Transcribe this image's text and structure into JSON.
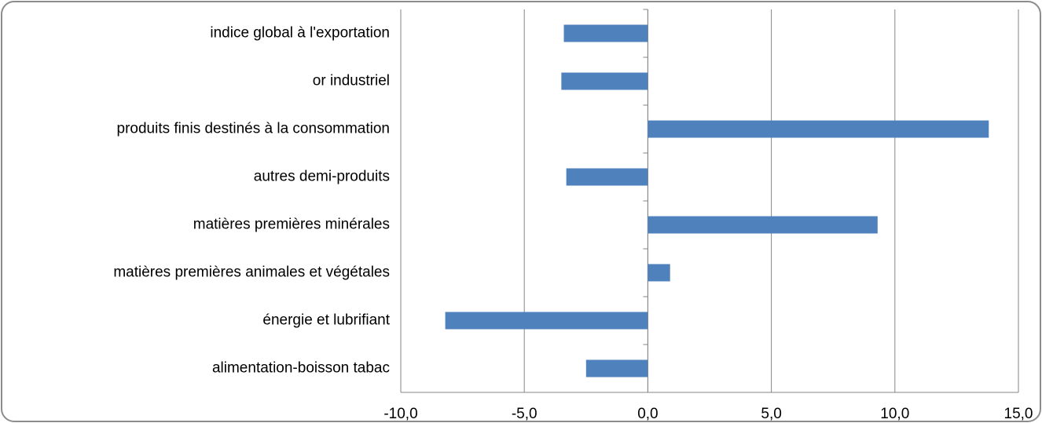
{
  "chart_data": {
    "type": "barh",
    "categories": [
      "indice global à l'exportation",
      "or industriel",
      "produits finis destinés à la consommation",
      "autres demi-produits",
      "matières premières minérales",
      "matières premières animales et végétales",
      "énergie et lubrifiant",
      "alimentation-boisson tabac"
    ],
    "values": [
      -3.4,
      -3.5,
      13.8,
      -3.3,
      9.3,
      0.9,
      -8.2,
      -2.5
    ],
    "color": "#4f81bd",
    "xlim": [
      -10,
      15
    ],
    "xticks": [
      {
        "value": -10,
        "label": "-10,0"
      },
      {
        "value": -5,
        "label": "-5,0"
      },
      {
        "value": 0,
        "label": "0,0"
      },
      {
        "value": 5,
        "label": "5,0"
      },
      {
        "value": 10,
        "label": "10,0"
      },
      {
        "value": 15,
        "label": "15,0"
      }
    ],
    "grid": true
  }
}
